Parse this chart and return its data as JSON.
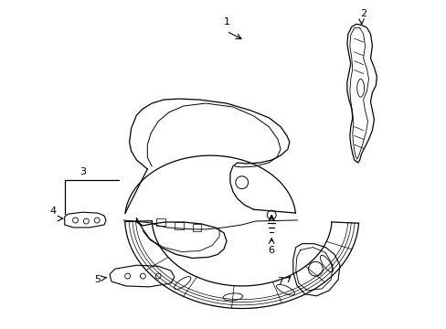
{
  "background_color": "#ffffff",
  "line_color": "#000000",
  "fig_width": 4.89,
  "fig_height": 3.6,
  "dpi": 100,
  "label_fontsize": 8,
  "lw": 0.9
}
